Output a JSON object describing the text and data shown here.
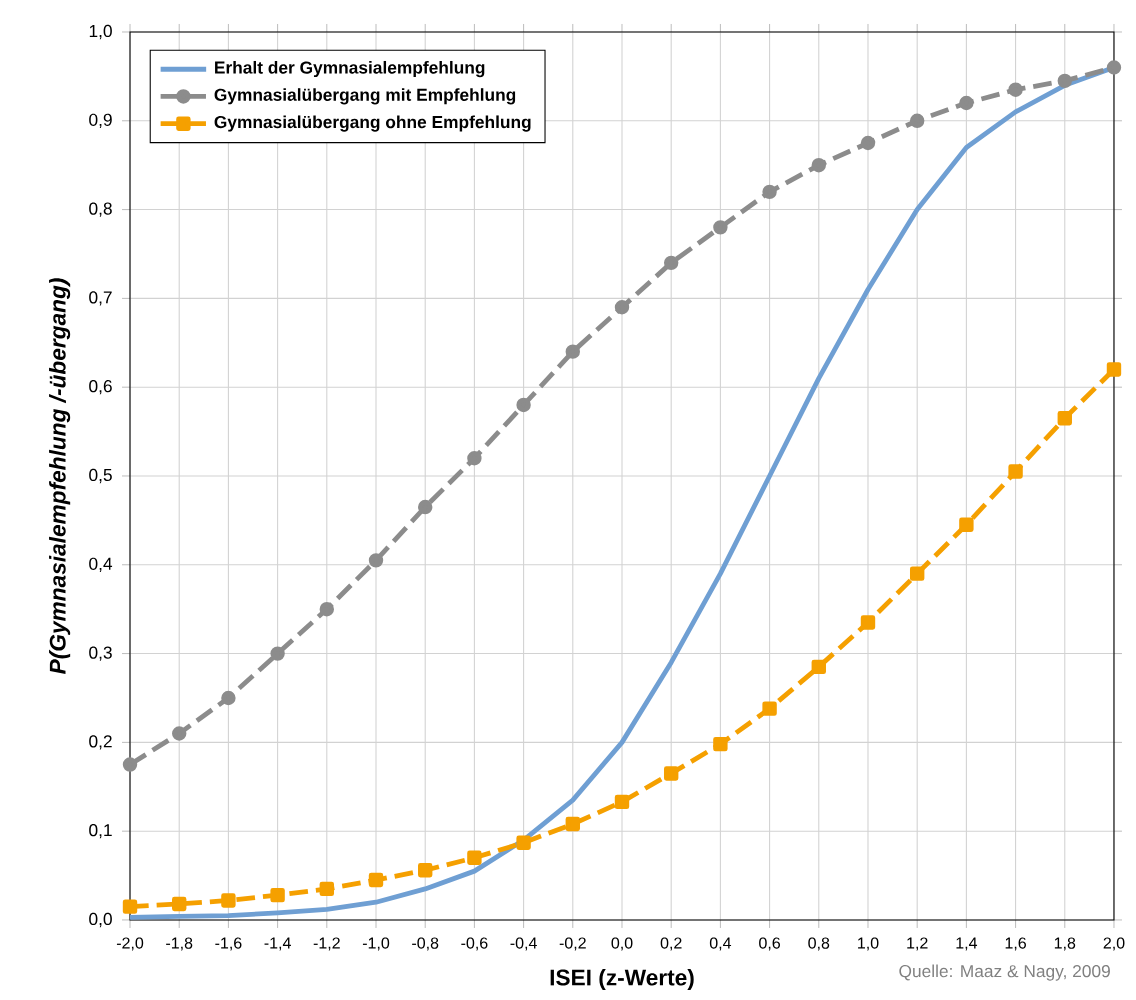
{
  "chart_data": {
    "type": "line",
    "xlabel": "ISEI (z-Werte)",
    "ylabel": "P(Gymnasialempfehlung /-übergang)",
    "x": [
      -2.0,
      -1.8,
      -1.6,
      -1.4,
      -1.2,
      -1.0,
      -0.8,
      -0.6,
      -0.4,
      -0.2,
      0.0,
      0.2,
      0.4,
      0.6,
      0.8,
      1.0,
      1.2,
      1.4,
      1.6,
      1.8,
      2.0
    ],
    "series": [
      {
        "name": "Erhalt der Gymnasialempfehlung",
        "color": "#6f9fd3",
        "marker": "none",
        "line_style": "solid",
        "values": [
          0.003,
          0.004,
          0.005,
          0.008,
          0.012,
          0.02,
          0.035,
          0.055,
          0.09,
          0.135,
          0.2,
          0.29,
          0.39,
          0.5,
          0.61,
          0.71,
          0.8,
          0.87,
          0.91,
          0.94,
          0.96
        ]
      },
      {
        "name": "Gymnasialübergang mit Empfehlung",
        "color": "#8c8c8c",
        "marker": "circle",
        "line_style": "dashed",
        "values": [
          0.175,
          0.21,
          0.25,
          0.3,
          0.35,
          0.405,
          0.465,
          0.52,
          0.58,
          0.64,
          0.69,
          0.74,
          0.78,
          0.82,
          0.85,
          0.875,
          0.9,
          0.92,
          0.935,
          0.945,
          0.96
        ]
      },
      {
        "name": "Gymnasialübergang ohne Empfehlung",
        "color": "#f5a000",
        "marker": "square",
        "line_style": "dashed",
        "values": [
          0.015,
          0.018,
          0.022,
          0.028,
          0.035,
          0.045,
          0.056,
          0.07,
          0.087,
          0.108,
          0.133,
          0.165,
          0.198,
          0.238,
          0.285,
          0.335,
          0.39,
          0.445,
          0.505,
          0.565,
          0.62
        ]
      }
    ],
    "xlim": [
      -2.0,
      2.0
    ],
    "ylim": [
      0,
      1.0
    ],
    "xticks": [
      {
        "value": -2.0,
        "label": "-2,0"
      },
      {
        "value": -1.8,
        "label": "-1,8"
      },
      {
        "value": -1.6,
        "label": "-1,6"
      },
      {
        "value": -1.4,
        "label": "-1,4"
      },
      {
        "value": -1.2,
        "label": "-1,2"
      },
      {
        "value": -1.0,
        "label": "-1,0"
      },
      {
        "value": -0.8,
        "label": "-0,8"
      },
      {
        "value": -0.6,
        "label": "-0,6"
      },
      {
        "value": -0.4,
        "label": "-0,4"
      },
      {
        "value": -0.2,
        "label": "-0,2"
      },
      {
        "value": 0.0,
        "label": "0,0"
      },
      {
        "value": 0.2,
        "label": "0,2"
      },
      {
        "value": 0.4,
        "label": "0,4"
      },
      {
        "value": 0.6,
        "label": "0,6"
      },
      {
        "value": 0.8,
        "label": "0,8"
      },
      {
        "value": 1.0,
        "label": "1,0"
      },
      {
        "value": 1.2,
        "label": "1,2"
      },
      {
        "value": 1.4,
        "label": "1,4"
      },
      {
        "value": 1.6,
        "label": "1,6"
      },
      {
        "value": 1.8,
        "label": "1,8"
      },
      {
        "value": 2.0,
        "label": "2,0"
      }
    ],
    "yticks": [
      {
        "value": 0,
        "label": "0,0"
      },
      {
        "value": 0.1,
        "label": "0,1"
      },
      {
        "value": 0.2,
        "label": "0,2"
      },
      {
        "value": 0.3,
        "label": "0,3"
      },
      {
        "value": 0.4,
        "label": "0,4"
      },
      {
        "value": 0.5,
        "label": "0,5"
      },
      {
        "value": 0.6,
        "label": "0,6"
      },
      {
        "value": 0.7,
        "label": "0,7"
      },
      {
        "value": 0.8,
        "label": "0,8"
      },
      {
        "value": 0.9,
        "label": "0,9"
      },
      {
        "value": 1.0,
        "label": "1,0"
      }
    ],
    "grid": true,
    "legend": "top left",
    "annotations": [
      "Quelle: Maaz & Nagy, 2009"
    ]
  }
}
